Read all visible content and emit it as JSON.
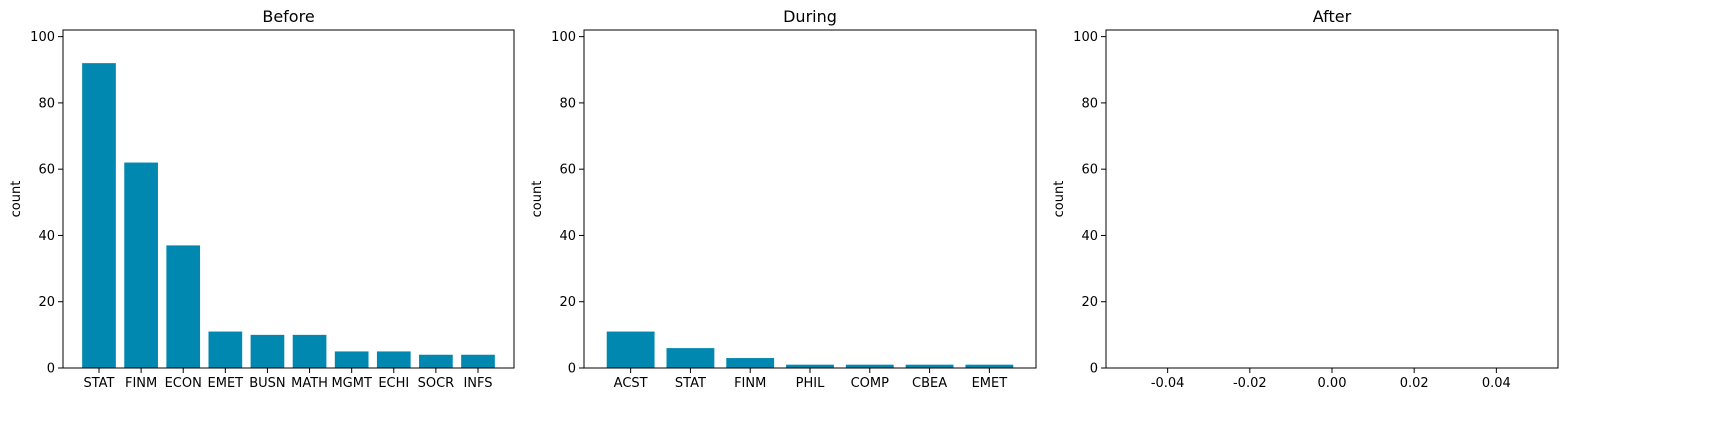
{
  "chart_data": [
    {
      "type": "bar",
      "title": "Before",
      "xlabel": "",
      "ylabel": "count",
      "ylim": [
        0,
        102
      ],
      "yticks": [
        0,
        20,
        40,
        60,
        80,
        100
      ],
      "categories": [
        "STAT",
        "FINM",
        "ECON",
        "EMET",
        "BUSN",
        "MATH",
        "MGMT",
        "ECHI",
        "SOCR",
        "INFS"
      ],
      "values": [
        92,
        62,
        37,
        11,
        10,
        10,
        5,
        5,
        4,
        4
      ],
      "bar_color": "#0088b0",
      "grid": false
    },
    {
      "type": "bar",
      "title": "During",
      "xlabel": "",
      "ylabel": "count",
      "ylim": [
        0,
        102
      ],
      "yticks": [
        0,
        20,
        40,
        60,
        80,
        100
      ],
      "categories": [
        "ACST",
        "STAT",
        "FINM",
        "PHIL",
        "COMP",
        "CBEA",
        "EMET"
      ],
      "values": [
        11,
        6,
        3,
        1,
        1,
        1,
        1
      ],
      "bar_color": "#0088b0",
      "grid": false
    },
    {
      "type": "bar",
      "title": "After",
      "xlabel": "",
      "ylabel": "count",
      "ylim": [
        0,
        102
      ],
      "yticks": [
        0,
        20,
        40,
        60,
        80,
        100
      ],
      "categories": [],
      "values": [],
      "xlim": [
        -0.055,
        0.055
      ],
      "xticks": [
        "-0.04",
        "-0.02",
        "0.00",
        "0.02",
        "0.04"
      ],
      "xtick_values": [
        -0.04,
        -0.02,
        0,
        0.02,
        0.04
      ],
      "bar_color": "#0088b0",
      "grid": false
    }
  ]
}
